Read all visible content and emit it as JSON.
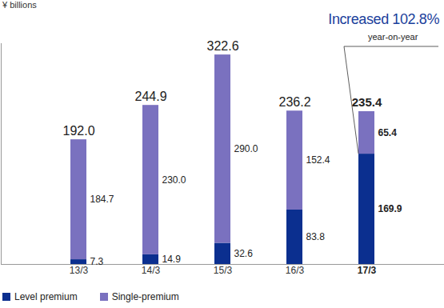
{
  "chart_data": {
    "type": "bar",
    "ylabel": "¥ billions",
    "categories": [
      "13/3",
      "14/3",
      "15/3",
      "16/3",
      "17/3"
    ],
    "series": [
      {
        "name": "Level premium",
        "color": "#0b2f8f",
        "values": [
          7.3,
          14.9,
          32.6,
          83.8,
          169.9
        ],
        "value_labels": [
          "7.3",
          "14.9",
          "32.6",
          "83.8",
          "169.9"
        ]
      },
      {
        "name": "Single-premium",
        "color": "#7a71bf",
        "values": [
          184.7,
          230.0,
          290.0,
          152.4,
          65.4
        ],
        "value_labels": [
          "184.7",
          "230.0",
          "290.0",
          "152.4",
          "65.4"
        ]
      }
    ],
    "totals": {
      "values": [
        192.0,
        244.9,
        322.6,
        236.2,
        235.4
      ],
      "value_labels": [
        "192.0",
        "244.9",
        "322.6",
        "236.2",
        "235.4"
      ]
    },
    "annotations": [
      "Increased 102.8%",
      "year-on-year"
    ],
    "stacked": true,
    "data_labels": true,
    "grid": false,
    "legend": "bottom-left",
    "tick_labels": "x",
    "ylim": [
      0,
      340
    ],
    "yticks": []
  }
}
